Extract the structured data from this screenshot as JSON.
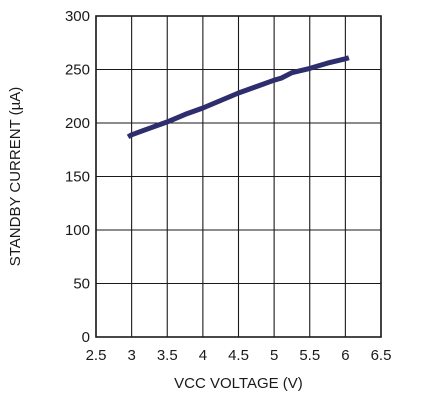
{
  "chart_data": {
    "type": "line",
    "xlabel": "VCC VOLTAGE (V)",
    "ylabel": "STANDBY CURRENT (µA)",
    "xlim": [
      2.5,
      6.5
    ],
    "ylim": [
      0,
      300
    ],
    "x_ticks": [
      2.5,
      3,
      3.5,
      4,
      4.5,
      5,
      5.5,
      6,
      6.5
    ],
    "x_tick_labels": [
      "2.5",
      "3",
      "3.5",
      "4",
      "4.5",
      "5",
      "5.5",
      "6",
      "6.5"
    ],
    "y_ticks": [
      0,
      50,
      100,
      150,
      200,
      250,
      300
    ],
    "y_tick_labels": [
      "0",
      "50",
      "100",
      "150",
      "200",
      "250",
      "300"
    ],
    "grid": true,
    "series": [
      {
        "color": "#2e2e6e",
        "x": [
          2.95,
          3.0,
          3.25,
          3.5,
          3.75,
          4.0,
          4.25,
          4.5,
          4.75,
          5.0,
          5.1,
          5.25,
          5.5,
          5.75,
          6.0,
          6.05
        ],
        "y": [
          187,
          189,
          195,
          201,
          208,
          214,
          221,
          228,
          234,
          240,
          242,
          247,
          251,
          256,
          260,
          261
        ]
      }
    ]
  }
}
